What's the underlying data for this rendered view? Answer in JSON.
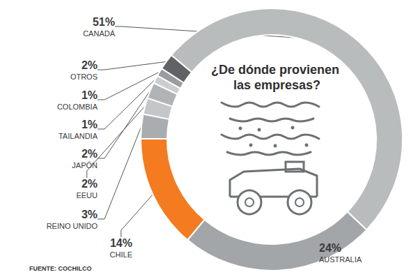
{
  "chart_data": {
    "type": "pie",
    "title": "¿De dónde provienen las empresas?",
    "source": "FUENTE: COCHILCO",
    "categories": [
      "CANADÁ",
      "AUSTRALIA",
      "CHILE",
      "REINO UNIDO",
      "EEUU",
      "JAPÓN",
      "TAILANDIA",
      "COLOMBIA",
      "OTROS"
    ],
    "values": [
      51,
      24,
      14,
      3,
      2,
      2,
      1,
      1,
      2
    ],
    "value_labels": [
      "51%",
      "24%",
      "14%",
      "3%",
      "2%",
      "2%",
      "1%",
      "1%",
      "2%"
    ],
    "colors": [
      "#b9bcbd",
      "#a2a6a8",
      "#f47b20",
      "#a9adaf",
      "#c4c7c8",
      "#b1b4b6",
      "#cbcdce",
      "#999d9f",
      "#5f6365"
    ],
    "data_labels": true
  }
}
